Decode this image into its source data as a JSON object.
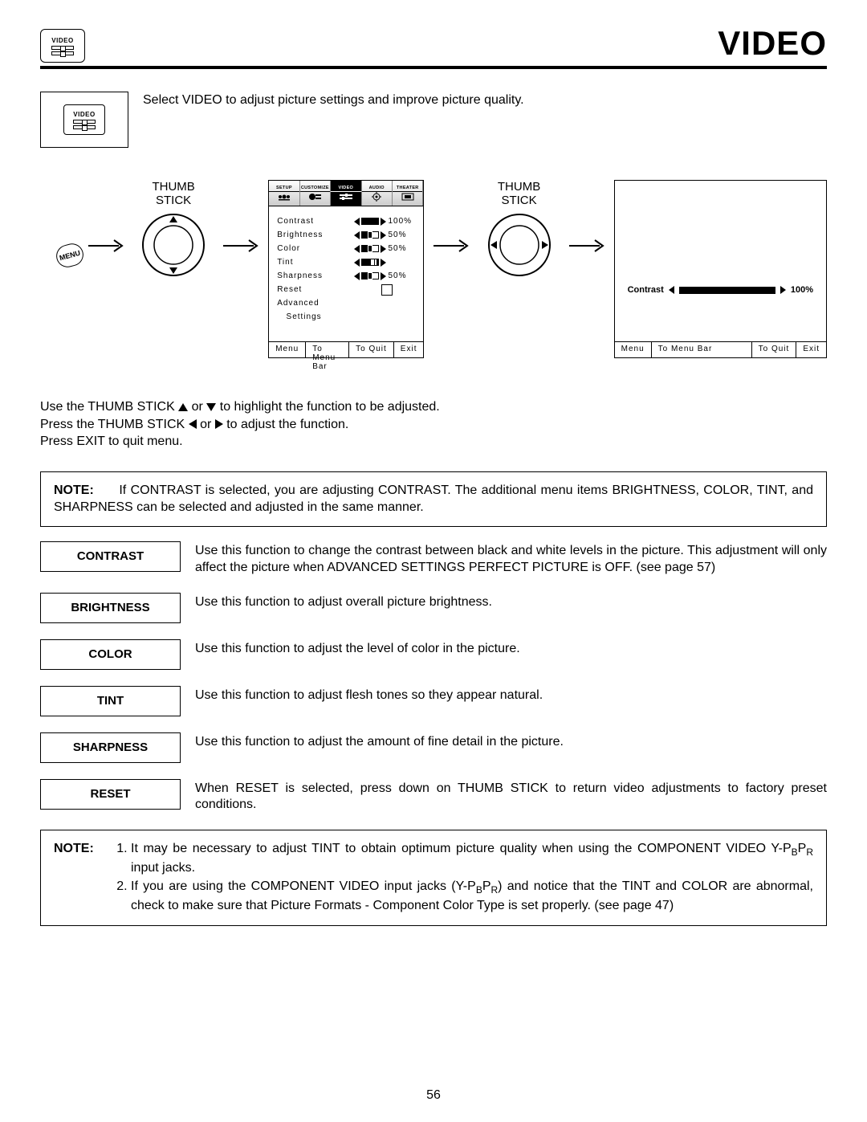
{
  "header": {
    "icon_label": "VIDEO",
    "title": "VIDEO"
  },
  "intro": {
    "icon_label": "VIDEO",
    "text": "Select VIDEO to adjust picture settings and improve picture quality."
  },
  "diagram": {
    "menu_badge": "MENU",
    "thumb_stick_label": "THUMB STICK",
    "tabs": [
      {
        "label": "SETUP"
      },
      {
        "label": "CUSTOMIZE"
      },
      {
        "label": "VIDEO",
        "active": true
      },
      {
        "label": "AUDIO"
      },
      {
        "label": "THEATER"
      }
    ],
    "items": [
      {
        "label": "Contrast",
        "type": "slider",
        "value": 100,
        "display": "100%"
      },
      {
        "label": "Brightness",
        "type": "slider",
        "value": 50,
        "display": "50%"
      },
      {
        "label": "Color",
        "type": "slider",
        "value": 50,
        "display": "50%"
      },
      {
        "label": "Tint",
        "type": "tint",
        "value": 50,
        "display": ""
      },
      {
        "label": "Sharpness",
        "type": "slider",
        "value": 50,
        "display": "50%"
      },
      {
        "label": "Reset",
        "type": "reset"
      },
      {
        "label": "Advanced",
        "type": "none"
      },
      {
        "label": "   Settings",
        "type": "none"
      }
    ],
    "footer": {
      "menu": "Menu",
      "menu_bar": "To Menu Bar",
      "quit": "To Quit",
      "exit": "Exit"
    },
    "zoom": {
      "label": "Contrast",
      "display": "100%",
      "value": 100
    }
  },
  "instructions": {
    "line1a": "Use the THUMB STICK ",
    "line1b": " or ",
    "line1c": " to highlight the function to be adjusted.",
    "line2a": "Press the THUMB STICK ",
    "line2b": " or ",
    "line2c": " to adjust the function.",
    "line3": "Press EXIT to quit menu."
  },
  "note1": {
    "label": "NOTE:",
    "text": "If CONTRAST is selected, you are adjusting CONTRAST.  The additional menu items BRIGHTNESS, COLOR, TINT, and SHARPNESS can be selected and adjusted in the same manner."
  },
  "functions": [
    {
      "name": "CONTRAST",
      "desc": "Use this function to change the contrast between black and white levels in the picture.  This adjustment will only affect the picture when ADVANCED SETTINGS PERFECT PICTURE is OFF. (see page 57)"
    },
    {
      "name": "BRIGHTNESS",
      "desc": "Use this function to adjust overall picture brightness."
    },
    {
      "name": "COLOR",
      "desc": "Use this function to adjust the level of color in the picture."
    },
    {
      "name": "TINT",
      "desc": "Use this function to adjust flesh tones so they appear natural."
    },
    {
      "name": "SHARPNESS",
      "desc": "Use this function to adjust the amount of fine detail in the picture."
    },
    {
      "name": "RESET",
      "desc": "When RESET is selected, press down on THUMB STICK to return video adjustments to factory preset conditions."
    }
  ],
  "note2": {
    "label": "NOTE:",
    "items_html": [
      "It may be necessary to adjust TINT to obtain optimum picture quality when using the COMPONENT VIDEO Y-P<span class='sub'>B</span>P<span class='sub'>R</span> input jacks.",
      "If you are using the COMPONENT VIDEO input jacks (Y-P<span class='sub'>B</span>P<span class='sub'>R</span>) and notice that the TINT and COLOR are abnormal, check to make sure that Picture Formats - Component Color Type is set properly. (see page 47)"
    ]
  },
  "page_number": "56"
}
